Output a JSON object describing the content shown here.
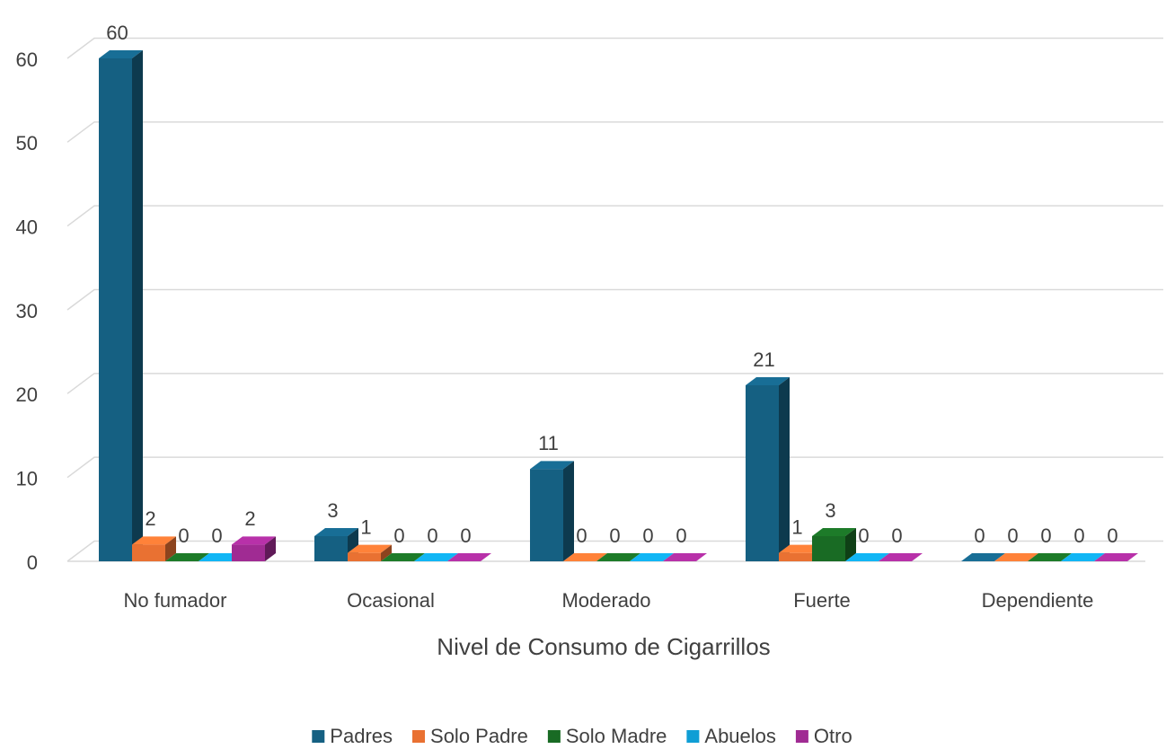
{
  "chart_data": {
    "type": "bar3d",
    "x_label": "Nivel de Consumo de Cigarrillos",
    "categories": [
      "No fumador",
      "Ocasional",
      "Moderado",
      "Fuerte",
      "Dependiente"
    ],
    "series": [
      {
        "name": "Padres",
        "color": "#156082",
        "values": [
          60,
          3,
          11,
          21,
          0
        ]
      },
      {
        "name": "Solo Padre",
        "color": "#e97132",
        "values": [
          2,
          1,
          0,
          1,
          0
        ]
      },
      {
        "name": "Solo Madre",
        "color": "#196b24",
        "values": [
          0,
          0,
          0,
          3,
          0
        ]
      },
      {
        "name": "Abuelos",
        "color": "#0f9ed5",
        "values": [
          0,
          0,
          0,
          0,
          0
        ]
      },
      {
        "name": "Otro",
        "color": "#a02b93",
        "values": [
          2,
          0,
          0,
          0,
          0
        ]
      }
    ],
    "ylim": [
      0,
      60
    ],
    "yticks": [
      0,
      10,
      20,
      30,
      40,
      50,
      60
    ],
    "grid": true,
    "legend": "bottom"
  }
}
